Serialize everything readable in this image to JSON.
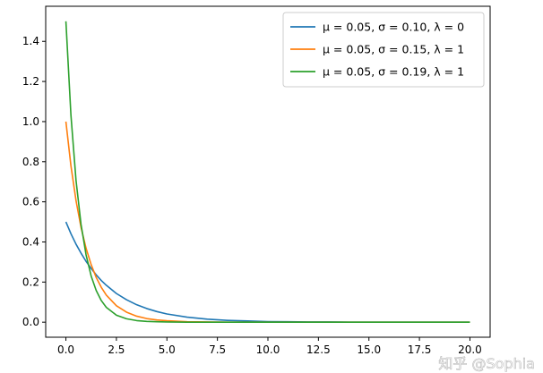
{
  "chart_data": {
    "type": "line",
    "title": "",
    "xlabel": "",
    "ylabel": "",
    "xlim": [
      -1,
      21
    ],
    "ylim": [
      -0.075,
      1.575
    ],
    "x_ticks": [
      "0.0",
      "2.5",
      "5.0",
      "7.5",
      "10.0",
      "12.5",
      "15.0",
      "17.5",
      "20.0"
    ],
    "y_ticks": [
      "0.0",
      "0.2",
      "0.4",
      "0.6",
      "0.8",
      "1.0",
      "1.2",
      "1.4"
    ],
    "grid": false,
    "legend_position": "top-right",
    "x": [
      0,
      0.25,
      0.5,
      0.75,
      1,
      1.25,
      1.5,
      1.75,
      2,
      2.5,
      3,
      3.5,
      4,
      4.5,
      5,
      6,
      7,
      8,
      9,
      10,
      11,
      12,
      13,
      14,
      15,
      16,
      17,
      18,
      19,
      20
    ],
    "series": [
      {
        "name": "μ = 0.05,  σ = 0.10,  λ = 0",
        "color": "#1f77b4",
        "values": [
          0.5,
          0.441,
          0.389,
          0.344,
          0.303,
          0.268,
          0.236,
          0.208,
          0.184,
          0.143,
          0.112,
          0.087,
          0.068,
          0.053,
          0.041,
          0.025,
          0.015,
          0.009,
          0.006,
          0.003,
          0.002,
          0.001,
          0.001,
          0.0,
          0.0,
          0.0,
          0.0,
          0.0,
          0.0,
          0.0
        ]
      },
      {
        "name": "μ = 0.05,  σ = 0.15,  λ = 1",
        "color": "#ff7f0e",
        "values": [
          1.0,
          0.779,
          0.607,
          0.472,
          0.368,
          0.287,
          0.223,
          0.174,
          0.135,
          0.082,
          0.05,
          0.03,
          0.018,
          0.011,
          0.007,
          0.002,
          0.001,
          0.0,
          0.0,
          0.0,
          0.0,
          0.0,
          0.0,
          0.0,
          0.0,
          0.0,
          0.0,
          0.0,
          0.0,
          0.0
        ]
      },
      {
        "name": "μ = 0.05,  σ = 0.19,  λ = 1",
        "color": "#2ca02c",
        "values": [
          1.5,
          1.031,
          0.708,
          0.487,
          0.335,
          0.23,
          0.158,
          0.108,
          0.074,
          0.035,
          0.017,
          0.008,
          0.004,
          0.002,
          0.001,
          0.0,
          0.0,
          0.0,
          0.0,
          0.0,
          0.0,
          0.0,
          0.0,
          0.0,
          0.0,
          0.0,
          0.0,
          0.0,
          0.0,
          0.0
        ]
      }
    ]
  },
  "watermark": "知乎 @Sophia"
}
